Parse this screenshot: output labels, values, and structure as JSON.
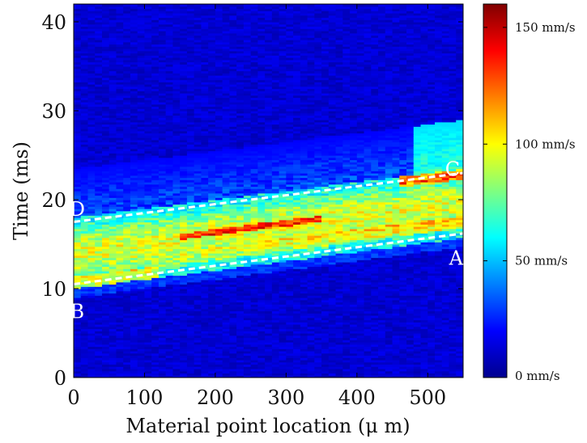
{
  "chart_data": {
    "type": "heatmap",
    "xlabel": "Material point location (μ m)",
    "ylabel": "Time (ms)",
    "xlim": [
      0,
      550
    ],
    "ylim": [
      0,
      42
    ],
    "x_ticks": [
      0,
      100,
      200,
      300,
      400,
      500
    ],
    "y_ticks": [
      0,
      10,
      20,
      30,
      40
    ],
    "colorbar": {
      "range": [
        0,
        160
      ],
      "colormap": "jet",
      "ticks": [
        {
          "value": 0,
          "label": "0 mm/s"
        },
        {
          "value": 50,
          "label": "50 mm/s"
        },
        {
          "value": 100,
          "label": "100 mm/s"
        },
        {
          "value": 150,
          "label": "150 mm/s"
        }
      ]
    },
    "front_lines": [
      {
        "from": "B",
        "to": "A",
        "points": [
          [
            0,
            10.5
          ],
          [
            550,
            16.2
          ]
        ],
        "style": "dashed",
        "color": "#ffffff"
      },
      {
        "from": "D",
        "to": "C",
        "points": [
          [
            0,
            17.5
          ],
          [
            550,
            23.0
          ]
        ],
        "style": "dashed",
        "color": "#ffffff"
      }
    ],
    "point_labels": [
      {
        "text": "A",
        "x": 540,
        "y": 13.5
      },
      {
        "text": "B",
        "x": 5,
        "y": 7.5
      },
      {
        "text": "C",
        "x": 535,
        "y": 23.5
      },
      {
        "text": "D",
        "x": 5,
        "y": 19.0
      }
    ],
    "band": {
      "description_values": "velocity band between lines",
      "peak_mm_s": 150,
      "background_mm_s": 8
    }
  }
}
